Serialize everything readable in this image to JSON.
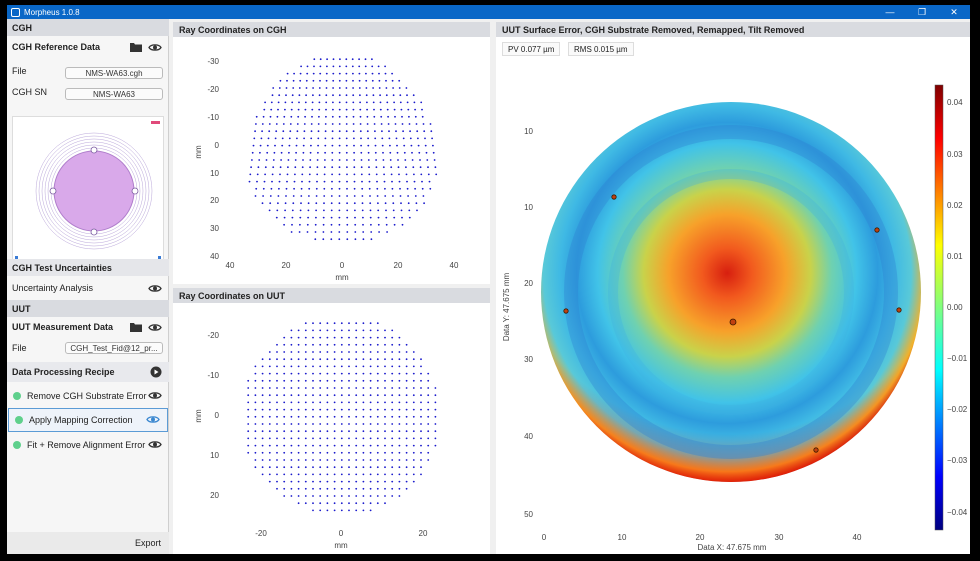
{
  "window": {
    "title": "Morpheus 1.0.8",
    "controls": [
      "—",
      "❐",
      "✕"
    ]
  },
  "sidebar": {
    "cgh_section": "CGH",
    "cgh_reference": {
      "label": "CGH Reference Data",
      "file_label": "File",
      "file_value": "NMS-WA63.cgh",
      "sn_label": "CGH SN",
      "sn_value": "NMS-WA63"
    },
    "uncertainties": {
      "label": "CGH Test Uncertainties",
      "item": "Uncertainty Analysis"
    },
    "uut_section": "UUT",
    "uut_measurement": {
      "label": "UUT Measurement Data",
      "file_label": "File",
      "file_value": "CGH_Test_Fid@12_pr..."
    },
    "recipe": {
      "label": "Data Processing Recipe",
      "steps": [
        {
          "label": "Remove CGH Substrate Error",
          "active": false
        },
        {
          "label": "Apply Mapping Correction",
          "active": true
        },
        {
          "label": "Fit + Remove Alignment Error",
          "active": false
        }
      ]
    },
    "export_label": "Export"
  },
  "panels": {
    "cgh_rays": {
      "title": "Ray Coordinates on CGH",
      "y_axis": "mm",
      "x_axis": "mm",
      "y_ticks": [
        "-30",
        "-20",
        "-10",
        "0",
        "10",
        "20",
        "30",
        "40"
      ],
      "x_ticks": [
        "40",
        "20",
        "0",
        "20",
        "40"
      ]
    },
    "uut_rays": {
      "title": "Ray Coordinates on UUT",
      "y_axis": "mm",
      "x_axis": "mm",
      "y_ticks": [
        "-20",
        "-10",
        "0",
        "10",
        "20"
      ],
      "x_ticks": [
        "-20",
        "0",
        "20"
      ]
    },
    "surface": {
      "title": "UUT Surface Error, CGH Substrate Removed, Remapped, Tilt Removed",
      "pv": "PV 0.077 µm",
      "rms": "RMS 0.015 µm",
      "y_label": "Data Y: 47.675 mm",
      "x_label": "Data X: 47.675 mm",
      "y_ticks": [
        "10",
        "20",
        "30",
        "40",
        "50"
      ],
      "x_ticks": [
        "0",
        "10",
        "20",
        "30",
        "40"
      ],
      "colorbar_ticks": [
        "0.04",
        "0.03",
        "0.02",
        "0.01",
        "0.00",
        "−0.01",
        "−0.02",
        "−0.03",
        "−0.04"
      ],
      "colors": {
        "low": "#00007f",
        "high": "#7f0000"
      }
    }
  }
}
